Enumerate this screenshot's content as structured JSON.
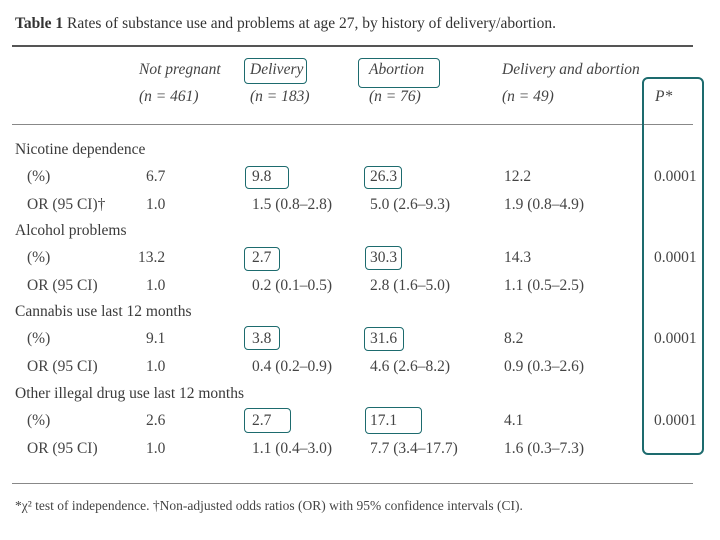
{
  "title": {
    "bold": "Table 1",
    "text": "Rates of substance use and problems at age 27, by history of delivery/abortion."
  },
  "columns": [
    {
      "name": "Not pregnant",
      "n": "(n = 461)"
    },
    {
      "name": "Delivery",
      "n": "(n = 183)"
    },
    {
      "name": "Abortion",
      "n": "(n = 76)"
    },
    {
      "name": "Delivery and abortion",
      "n": "(n = 49)"
    }
  ],
  "p_header": "P*",
  "sections": [
    {
      "label": "Nicotine dependence",
      "pct_label": "(%)",
      "pct": [
        "6.7",
        "9.8",
        "26.3",
        "12.2"
      ],
      "p": "0.0001",
      "or_label": "OR (95 CI)†",
      "or": [
        "1.0",
        "1.5 (0.8–2.8)",
        "5.0 (2.6–9.3)",
        "1.9 (0.8–4.9)"
      ]
    },
    {
      "label": "Alcohol problems",
      "pct_label": "(%)",
      "pct": [
        "13.2",
        "2.7",
        "30.3",
        "14.3"
      ],
      "p": "0.0001",
      "or_label": "OR (95 CI)",
      "or": [
        "1.0",
        "0.2 (0.1–0.5)",
        "2.8 (1.6–5.0)",
        "1.1 (0.5–2.5)"
      ]
    },
    {
      "label": "Cannabis use last 12 months",
      "pct_label": "(%)",
      "pct": [
        "9.1",
        "3.8",
        "31.6",
        "8.2"
      ],
      "p": "0.0001",
      "or_label": "OR (95 CI)",
      "or": [
        "1.0",
        "0.4 (0.2–0.9)",
        "4.6 (2.6–8.2)",
        "0.9 (0.3–2.6)"
      ]
    },
    {
      "label": "Other illegal drug use last 12 months",
      "pct_label": "(%)",
      "pct": [
        "2.6",
        "2.7",
        "17.1",
        "4.1"
      ],
      "p": "0.0001",
      "or_label": "OR (95 CI)",
      "or": [
        "1.0",
        "1.1 (0.4–3.0)",
        "7.7 (3.4–17.7)",
        "1.6 (0.3–7.3)"
      ]
    }
  ],
  "footnote": "*χ² test of independence. †Non-adjusted odds ratios (OR) with 95% confidence intervals (CI).",
  "highlight_color": "#1d6b6e"
}
